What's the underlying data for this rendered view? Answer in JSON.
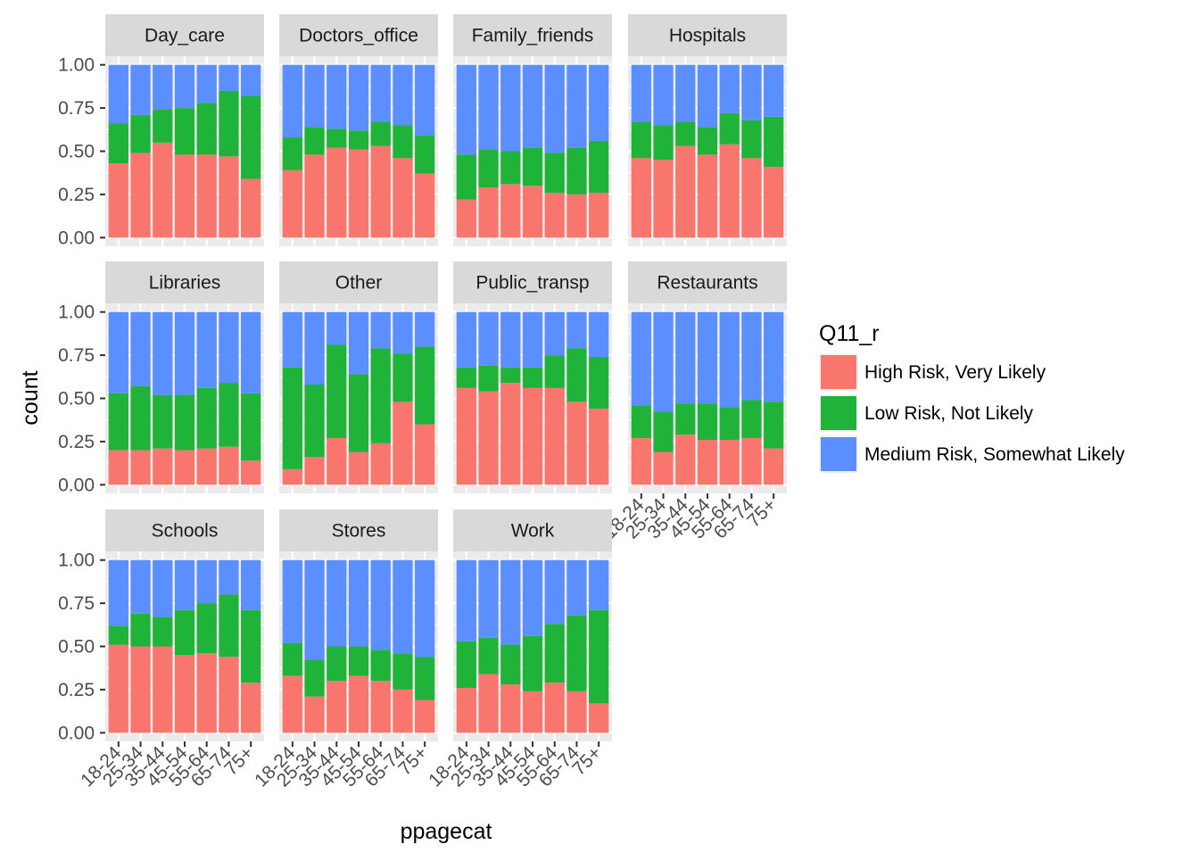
{
  "colors": {
    "panel_bg": "#ebebeb",
    "strip_bg": "#d9d9d9",
    "grid": "#ffffff",
    "tick": "#333333",
    "High Risk, Very Likely": "#f8766d",
    "Low Risk, Not Likely": "#1fb33a",
    "Medium Risk, Somewhat Likely": "#5b8eff"
  },
  "chart_data": {
    "type": "bar",
    "stacked": "fill",
    "xlabel": "ppagecat",
    "ylabel": "count",
    "ylim": [
      0,
      1
    ],
    "yticks": [
      "0.00",
      "0.25",
      "0.50",
      "0.75",
      "1.00"
    ],
    "categories": [
      "18-24",
      "25-34",
      "35-44",
      "45-54",
      "55-64",
      "65-74",
      "75+"
    ],
    "legend": {
      "title": "Q11_r",
      "position": "right",
      "entries": [
        "High Risk, Very Likely",
        "Low Risk, Not Likely",
        "Medium Risk, Somewhat Likely"
      ]
    },
    "panels": [
      {
        "label": "Day_care",
        "series": [
          {
            "name": "High Risk, Very Likely",
            "values": [
              0.43,
              0.49,
              0.55,
              0.48,
              0.48,
              0.47,
              0.34
            ]
          },
          {
            "name": "Low Risk, Not Likely",
            "values": [
              0.23,
              0.22,
              0.19,
              0.27,
              0.3,
              0.38,
              0.48
            ]
          },
          {
            "name": "Medium Risk, Somewhat Likely",
            "values": [
              0.34,
              0.29,
              0.26,
              0.25,
              0.22,
              0.15,
              0.18
            ]
          }
        ]
      },
      {
        "label": "Doctors_office",
        "series": [
          {
            "name": "High Risk, Very Likely",
            "values": [
              0.39,
              0.48,
              0.52,
              0.51,
              0.53,
              0.46,
              0.37
            ]
          },
          {
            "name": "Low Risk, Not Likely",
            "values": [
              0.19,
              0.16,
              0.11,
              0.11,
              0.14,
              0.19,
              0.22
            ]
          },
          {
            "name": "Medium Risk, Somewhat Likely",
            "values": [
              0.42,
              0.36,
              0.37,
              0.38,
              0.33,
              0.35,
              0.41
            ]
          }
        ]
      },
      {
        "label": "Family_friends",
        "series": [
          {
            "name": "High Risk, Very Likely",
            "values": [
              0.22,
              0.29,
              0.31,
              0.3,
              0.26,
              0.25,
              0.26
            ]
          },
          {
            "name": "Low Risk, Not Likely",
            "values": [
              0.26,
              0.22,
              0.19,
              0.22,
              0.23,
              0.27,
              0.3
            ]
          },
          {
            "name": "Medium Risk, Somewhat Likely",
            "values": [
              0.52,
              0.49,
              0.5,
              0.48,
              0.51,
              0.48,
              0.44
            ]
          }
        ]
      },
      {
        "label": "Hospitals",
        "series": [
          {
            "name": "High Risk, Very Likely",
            "values": [
              0.46,
              0.45,
              0.53,
              0.48,
              0.54,
              0.46,
              0.41
            ]
          },
          {
            "name": "Low Risk, Not Likely",
            "values": [
              0.21,
              0.2,
              0.14,
              0.16,
              0.18,
              0.22,
              0.29
            ]
          },
          {
            "name": "Medium Risk, Somewhat Likely",
            "values": [
              0.33,
              0.35,
              0.33,
              0.36,
              0.28,
              0.32,
              0.3
            ]
          }
        ]
      },
      {
        "label": "Libraries",
        "series": [
          {
            "name": "High Risk, Very Likely",
            "values": [
              0.2,
              0.2,
              0.21,
              0.2,
              0.21,
              0.22,
              0.14
            ]
          },
          {
            "name": "Low Risk, Not Likely",
            "values": [
              0.33,
              0.37,
              0.31,
              0.32,
              0.35,
              0.37,
              0.39
            ]
          },
          {
            "name": "Medium Risk, Somewhat Likely",
            "values": [
              0.47,
              0.43,
              0.48,
              0.48,
              0.44,
              0.41,
              0.47
            ]
          }
        ]
      },
      {
        "label": "Other",
        "series": [
          {
            "name": "High Risk, Very Likely",
            "values": [
              0.09,
              0.16,
              0.27,
              0.19,
              0.24,
              0.48,
              0.35
            ]
          },
          {
            "name": "Low Risk, Not Likely",
            "values": [
              0.59,
              0.42,
              0.54,
              0.45,
              0.55,
              0.28,
              0.45
            ]
          },
          {
            "name": "Medium Risk, Somewhat Likely",
            "values": [
              0.32,
              0.42,
              0.19,
              0.36,
              0.21,
              0.24,
              0.2
            ]
          }
        ]
      },
      {
        "label": "Public_transp",
        "series": [
          {
            "name": "High Risk, Very Likely",
            "values": [
              0.56,
              0.54,
              0.59,
              0.56,
              0.56,
              0.48,
              0.44
            ]
          },
          {
            "name": "Low Risk, Not Likely",
            "values": [
              0.12,
              0.15,
              0.09,
              0.12,
              0.19,
              0.31,
              0.3
            ]
          },
          {
            "name": "Medium Risk, Somewhat Likely",
            "values": [
              0.32,
              0.31,
              0.32,
              0.32,
              0.25,
              0.21,
              0.26
            ]
          }
        ]
      },
      {
        "label": "Restaurants",
        "series": [
          {
            "name": "High Risk, Very Likely",
            "values": [
              0.27,
              0.19,
              0.29,
              0.26,
              0.26,
              0.27,
              0.21
            ]
          },
          {
            "name": "Low Risk, Not Likely",
            "values": [
              0.19,
              0.23,
              0.18,
              0.21,
              0.19,
              0.22,
              0.27
            ]
          },
          {
            "name": "Medium Risk, Somewhat Likely",
            "values": [
              0.54,
              0.58,
              0.53,
              0.53,
              0.55,
              0.51,
              0.52
            ]
          }
        ]
      },
      {
        "label": "Schools",
        "series": [
          {
            "name": "High Risk, Very Likely",
            "values": [
              0.51,
              0.5,
              0.5,
              0.45,
              0.46,
              0.44,
              0.29
            ]
          },
          {
            "name": "Low Risk, Not Likely",
            "values": [
              0.11,
              0.19,
              0.17,
              0.26,
              0.29,
              0.36,
              0.42
            ]
          },
          {
            "name": "Medium Risk, Somewhat Likely",
            "values": [
              0.38,
              0.31,
              0.33,
              0.29,
              0.25,
              0.2,
              0.29
            ]
          }
        ]
      },
      {
        "label": "Stores",
        "series": [
          {
            "name": "High Risk, Very Likely",
            "values": [
              0.33,
              0.21,
              0.3,
              0.33,
              0.3,
              0.25,
              0.19
            ]
          },
          {
            "name": "Low Risk, Not Likely",
            "values": [
              0.19,
              0.21,
              0.2,
              0.17,
              0.18,
              0.21,
              0.25
            ]
          },
          {
            "name": "Medium Risk, Somewhat Likely",
            "values": [
              0.48,
              0.58,
              0.5,
              0.5,
              0.52,
              0.54,
              0.56
            ]
          }
        ]
      },
      {
        "label": "Work",
        "series": [
          {
            "name": "High Risk, Very Likely",
            "values": [
              0.26,
              0.34,
              0.28,
              0.24,
              0.29,
              0.24,
              0.17
            ]
          },
          {
            "name": "Low Risk, Not Likely",
            "values": [
              0.27,
              0.21,
              0.23,
              0.32,
              0.34,
              0.44,
              0.54
            ]
          },
          {
            "name": "Medium Risk, Somewhat Likely",
            "values": [
              0.47,
              0.45,
              0.49,
              0.44,
              0.37,
              0.32,
              0.29
            ]
          }
        ]
      }
    ]
  }
}
